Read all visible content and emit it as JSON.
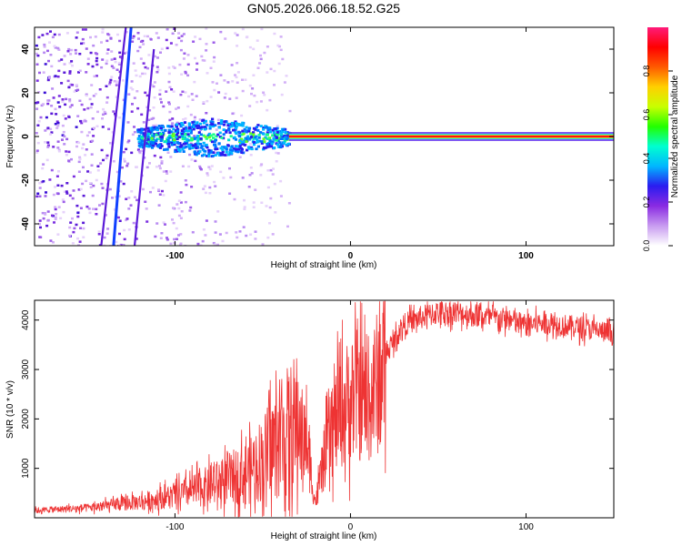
{
  "title": "GN05.2026.066.18.52.G25",
  "chart_data": [
    {
      "type": "heatmap",
      "title": "GN05.2026.066.18.52.G25",
      "xlabel": "Height of straight line (km)",
      "ylabel": "Frequency (Hz)",
      "xlim": [
        -180,
        150
      ],
      "ylim": [
        -50,
        50
      ],
      "xticks": [
        -100,
        0,
        100
      ],
      "yticks": [
        -40,
        -20,
        0,
        20,
        40
      ],
      "xtick_labels": [
        "-100",
        "0",
        "100"
      ],
      "ytick_labels": [
        "-40",
        "-20",
        "0",
        "20",
        "40"
      ],
      "colorbar": {
        "label": "Normalized spectral amplitude",
        "range": [
          0,
          1
        ],
        "ticks": [
          0.0,
          0.2,
          0.4,
          0.6,
          0.8
        ],
        "tick_labels": [
          "0.0",
          "0.2",
          "0.4",
          "0.6",
          "0.8"
        ],
        "colors": [
          "#ffffff",
          "#c89bf0",
          "#8a2be2",
          "#2a1cf0",
          "#00b7ff",
          "#00ffd0",
          "#22ff00",
          "#c8ff00",
          "#ffd000",
          "#ff5a00",
          "#ff0000",
          "#ff1b7a"
        ]
      },
      "features": {
        "carrier_frequency": 0,
        "carrier_region_x": [
          -35,
          150
        ],
        "noise_region_x": [
          -180,
          -35
        ],
        "slanted_streaks": [
          {
            "x": [
              -135,
              -125
            ],
            "y": [
              -50,
              50
            ]
          },
          {
            "x": [
              -123,
              -112
            ],
            "y": [
              -50,
              40
            ]
          },
          {
            "x": [
              -142,
              -128
            ],
            "y": [
              -50,
              50
            ]
          }
        ]
      }
    },
    {
      "type": "line",
      "xlabel": "Height of straight line (km)",
      "ylabel": "SNR (10 * v/v)",
      "xlim": [
        -180,
        150
      ],
      "ylim": [
        0,
        4400
      ],
      "xticks": [
        -100,
        0,
        100
      ],
      "yticks": [
        1000,
        2000,
        3000,
        4000
      ],
      "xtick_labels": [
        "-100",
        "0",
        "100"
      ],
      "ytick_labels": [
        "1000",
        "2000",
        "3000",
        "4000"
      ],
      "series": [
        {
          "name": "SNR",
          "color": "#ee3333",
          "x": [
            -180,
            -150,
            -120,
            -100,
            -80,
            -60,
            -50,
            -40,
            -30,
            -25,
            -20,
            -15,
            -10,
            -5,
            0,
            5,
            10,
            15,
            20,
            25,
            30,
            40,
            50,
            60,
            70,
            80,
            90,
            95,
            100,
            110,
            120,
            130,
            140,
            150
          ],
          "values": [
            150,
            200,
            320,
            450,
            650,
            900,
            1200,
            1600,
            1900,
            1500,
            300,
            1200,
            1800,
            2200,
            2400,
            2500,
            2300,
            2700,
            3300,
            3600,
            3900,
            4050,
            4150,
            4150,
            4100,
            4050,
            4000,
            3950,
            3900,
            3950,
            3900,
            3850,
            3800,
            3700
          ]
        }
      ]
    }
  ]
}
